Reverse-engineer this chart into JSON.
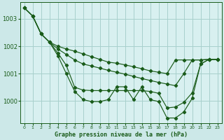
{
  "bg_color": "#cce8e8",
  "plot_bg_color": "#d8f0f0",
  "line_color": "#1a5c1a",
  "grid_color": "#a8d0cc",
  "xlabel": "Graphe pression niveau de la mer (hPa)",
  "xlim": [
    -0.5,
    23.5
  ],
  "ylim": [
    999.2,
    1003.6
  ],
  "yticks": [
    1000,
    1001,
    1002,
    1003
  ],
  "xticks": [
    0,
    1,
    2,
    3,
    4,
    5,
    6,
    7,
    8,
    9,
    10,
    11,
    12,
    13,
    14,
    15,
    16,
    17,
    18,
    19,
    20,
    21,
    22,
    23
  ],
  "line1_x": [
    0,
    1,
    2,
    3,
    4,
    5,
    6,
    7,
    8,
    9,
    10,
    11,
    12,
    13,
    14,
    15,
    16,
    17,
    18,
    19,
    20,
    21,
    22,
    23
  ],
  "line1_y": [
    1003.4,
    1003.1,
    1002.45,
    1002.15,
    1002.0,
    1001.9,
    1001.82,
    1001.72,
    1001.62,
    1001.52,
    1001.42,
    1001.38,
    1001.32,
    1001.25,
    1001.18,
    1001.1,
    1001.05,
    1001.0,
    1001.5,
    1001.5,
    1001.5,
    1001.5,
    1001.52,
    1001.52
  ],
  "line2_x": [
    0,
    1,
    2,
    3,
    4,
    5,
    6,
    7,
    8,
    9,
    10,
    11,
    12,
    13,
    14,
    15,
    16,
    17,
    18,
    19,
    20,
    21,
    22,
    23
  ],
  "line2_y": [
    1003.4,
    1003.1,
    1002.45,
    1002.15,
    1001.9,
    1001.7,
    1001.5,
    1001.35,
    1001.28,
    1001.2,
    1001.12,
    1001.05,
    1000.98,
    1000.9,
    1000.82,
    1000.75,
    1000.68,
    1000.62,
    1000.56,
    1001.0,
    1001.5,
    1001.5,
    1001.52,
    1001.52
  ],
  "line3_x": [
    0,
    1,
    2,
    3,
    4,
    5,
    6,
    7,
    8,
    9,
    10,
    11,
    12,
    13,
    14,
    15,
    16,
    17,
    18,
    19,
    20,
    21,
    22,
    23
  ],
  "line3_y": [
    1003.4,
    1003.1,
    1002.45,
    1002.15,
    1001.75,
    1001.3,
    1000.5,
    1000.4,
    1000.38,
    1000.38,
    1000.38,
    1000.38,
    1000.38,
    1000.38,
    1000.38,
    1000.35,
    1000.28,
    999.75,
    999.78,
    999.95,
    1000.3,
    1001.35,
    1001.52,
    1001.52
  ],
  "line4_x": [
    0,
    1,
    2,
    3,
    4,
    5,
    6,
    7,
    8,
    9,
    10,
    11,
    12,
    13,
    14,
    15,
    16,
    17,
    18,
    19,
    20,
    21,
    22,
    23
  ],
  "line4_y": [
    1003.4,
    1003.1,
    1002.45,
    1002.15,
    1001.65,
    1001.0,
    1000.35,
    1000.05,
    999.98,
    999.98,
    1000.05,
    1000.52,
    1000.52,
    1000.05,
    1000.52,
    1000.05,
    999.98,
    999.38,
    999.38,
    999.6,
    1000.1,
    1001.35,
    1001.52,
    1001.52
  ]
}
